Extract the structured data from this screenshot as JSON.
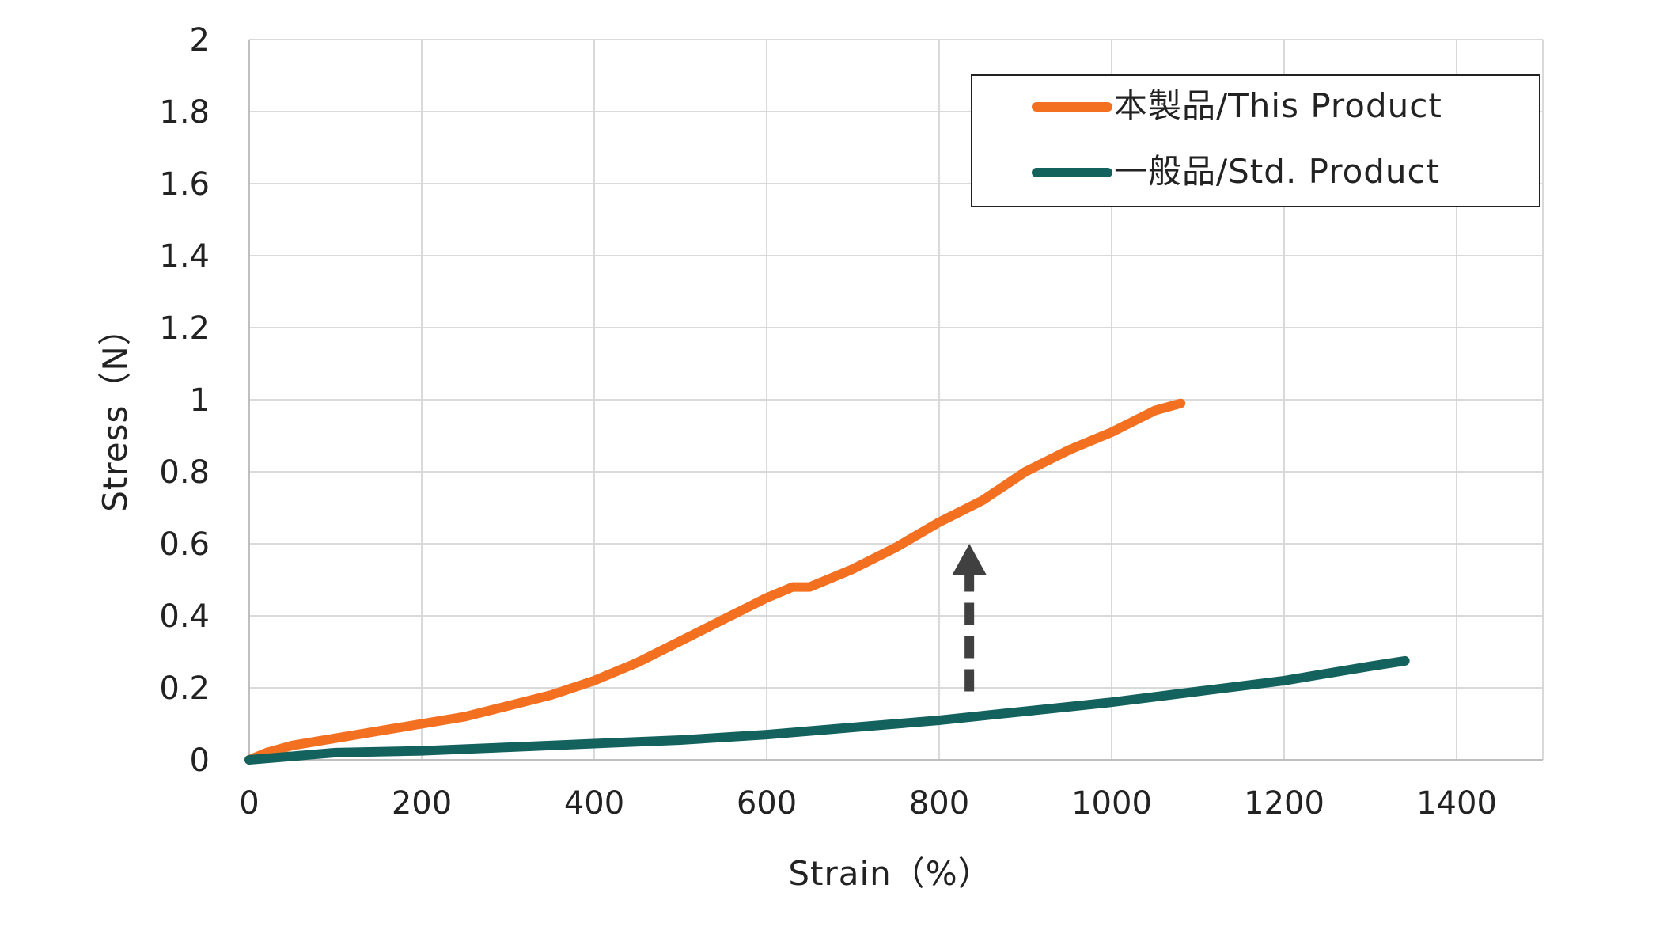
{
  "chart_data": {
    "type": "line",
    "title": "",
    "xlabel": "Strain（%）",
    "ylabel": "Stress（N）",
    "xlim": [
      0,
      1500
    ],
    "ylim": [
      0,
      2
    ],
    "xticks": [
      "0",
      "200",
      "400",
      "600",
      "800",
      "1000",
      "1200",
      "1400"
    ],
    "yticks": [
      "0",
      "0.2",
      "0.4",
      "0.6",
      "0.8",
      "1",
      "1.2",
      "1.4",
      "1.6",
      "1.8",
      "2"
    ],
    "grid": true,
    "legend_position": "top-right",
    "series": [
      {
        "name": "本製品/This Product",
        "color": "#f37021",
        "x": [
          0,
          20,
          50,
          100,
          150,
          200,
          250,
          300,
          350,
          400,
          450,
          500,
          550,
          600,
          630,
          650,
          700,
          750,
          800,
          850,
          900,
          950,
          1000,
          1050,
          1080
        ],
        "y": [
          0,
          0.02,
          0.04,
          0.06,
          0.08,
          0.1,
          0.12,
          0.15,
          0.18,
          0.22,
          0.27,
          0.33,
          0.39,
          0.45,
          0.48,
          0.48,
          0.53,
          0.59,
          0.66,
          0.72,
          0.8,
          0.86,
          0.91,
          0.97,
          0.99
        ]
      },
      {
        "name": "一般品/Std. Product",
        "color": "#13625e",
        "x": [
          0,
          50,
          100,
          200,
          300,
          400,
          500,
          600,
          700,
          800,
          900,
          1000,
          1100,
          1200,
          1300,
          1340
        ],
        "y": [
          0,
          0.01,
          0.02,
          0.025,
          0.035,
          0.045,
          0.055,
          0.07,
          0.09,
          0.11,
          0.135,
          0.16,
          0.19,
          0.22,
          0.26,
          0.275
        ]
      }
    ],
    "annotations": [
      {
        "type": "dashed-arrow-up",
        "x": 835,
        "y_from": 0.19,
        "y_to": 0.6,
        "color": "#404040"
      }
    ]
  }
}
